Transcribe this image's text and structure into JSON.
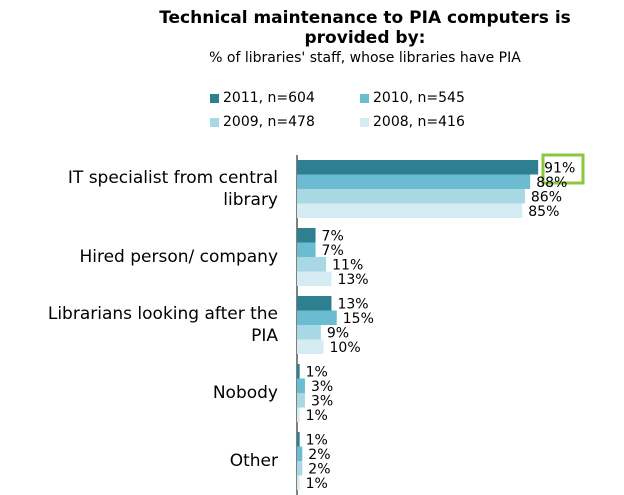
{
  "chart_data": {
    "type": "bar",
    "orientation": "horizontal",
    "title": "Technical maintenance to PIA computers is provided by:",
    "subtitle": "% of libraries' staff, whose libraries have PIA",
    "categories": [
      "IT specialist from central library",
      "Hired person/ company",
      "Librarians looking after the PIA",
      "Nobody",
      "Other"
    ],
    "series": [
      {
        "name": "2011, n=604",
        "color": "#2e7f8f",
        "values": [
          91,
          7,
          13,
          1,
          1
        ],
        "value_labels": [
          "91%",
          "7%",
          "13%",
          "1%",
          "1%"
        ]
      },
      {
        "name": "2010, n=545",
        "color": "#6bbcd0",
        "values": [
          88,
          7,
          15,
          3,
          2
        ],
        "value_labels": [
          "88%",
          "7%",
          "15%",
          "3%",
          "2%"
        ]
      },
      {
        "name": "2009, n=478",
        "color": "#a8d8e4",
        "values": [
          86,
          11,
          9,
          3,
          2
        ],
        "value_labels": [
          "86%",
          "11%",
          "9%",
          "3%",
          "2%"
        ]
      },
      {
        "name": "2008, n=416",
        "color": "#d5ecf2",
        "values": [
          85,
          13,
          10,
          1,
          1
        ],
        "value_labels": [
          "85%",
          "13%",
          "10%",
          "1%",
          "1%"
        ]
      }
    ]
  }
}
